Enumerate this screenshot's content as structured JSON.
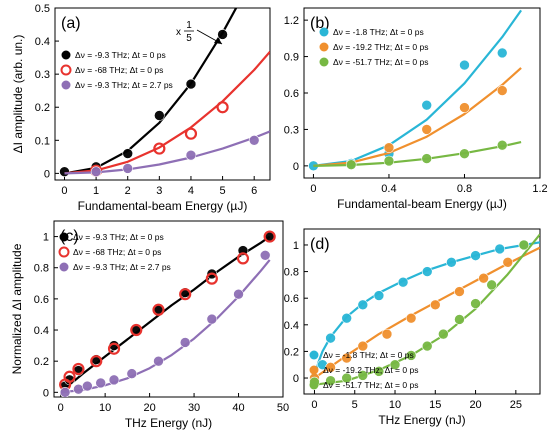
{
  "chart_data": [
    {
      "type": "scatter",
      "panel_label": "(a)",
      "xlabel": "Fundamental-beam Energy (µJ)",
      "ylabel": "ΔI amplitude (arb. un.)",
      "xlim": [
        -0.3,
        6.5
      ],
      "ylim": [
        -0.02,
        0.5
      ],
      "xticks": [
        "0",
        "1",
        "2",
        "3",
        "4",
        "5",
        "6"
      ],
      "yticks": [
        "0",
        "0.1",
        "0.2",
        "0.3",
        "0.4",
        "0.5"
      ],
      "legend_position": "upper-left",
      "annotation": {
        "prefix": "x",
        "numerator": "1",
        "denominator": "5"
      },
      "series": [
        {
          "name": "Δν = -9.3 THz; Δt = 0 ps",
          "color": "#000000",
          "marker": "filled",
          "x": [
            0,
            1,
            2,
            3,
            4,
            5
          ],
          "y": [
            0.005,
            0.02,
            0.06,
            0.175,
            0.27,
            0.42
          ],
          "fit_x": [
            0,
            1,
            2,
            3,
            4,
            5,
            5.6
          ],
          "fit_y": [
            0.0,
            0.017,
            0.068,
            0.153,
            0.272,
            0.425,
            0.53
          ]
        },
        {
          "name": "Δν = -68 THz; Δt = 0 ps",
          "color": "#e8332e",
          "marker": "open",
          "x": [
            1,
            3,
            4,
            5
          ],
          "y": [
            0.008,
            0.075,
            0.12,
            0.2
          ],
          "fit_x": [
            0,
            1,
            2,
            3,
            4,
            5,
            6,
            6.5
          ],
          "fit_y": [
            0.0,
            0.009,
            0.035,
            0.078,
            0.139,
            0.218,
            0.313,
            0.368
          ]
        },
        {
          "name": "Δν = -9.3 THz; Δt = 2.7 ps",
          "color": "#8e6fb5",
          "marker": "filled",
          "x": [
            1,
            2,
            4,
            6
          ],
          "y": [
            0.005,
            0.015,
            0.055,
            0.1
          ],
          "fit_x": [
            0,
            1,
            2,
            3,
            4,
            5,
            6,
            6.5
          ],
          "fit_y": [
            0.0,
            0.003,
            0.012,
            0.027,
            0.048,
            0.075,
            0.108,
            0.127
          ]
        }
      ]
    },
    {
      "type": "scatter",
      "panel_label": "(b)",
      "xlabel": "Fundamental-beam Energy (µJ)",
      "ylabel": "",
      "xlim": [
        -0.05,
        1.2
      ],
      "ylim": [
        -0.1,
        1.3
      ],
      "xticks": [
        "0",
        "0.4",
        "0.8",
        "1.2"
      ],
      "yticks": [
        "0",
        "0.3",
        "0.6",
        "0.9",
        "1.2"
      ],
      "legend_position": "upper-left",
      "series": [
        {
          "name": "Δν = -1.8 THz; Δt = 0 ps",
          "color": "#29b6d6",
          "marker": "filled",
          "x": [
            0,
            0.2,
            0.4,
            0.6,
            0.8,
            1.0
          ],
          "y": [
            0.0,
            0.02,
            0.1,
            0.5,
            0.83,
            0.93
          ],
          "fit_x": [
            0,
            0.2,
            0.4,
            0.6,
            0.8,
            1.0,
            1.1
          ],
          "fit_y": [
            0.0,
            0.04,
            0.17,
            0.38,
            0.68,
            1.06,
            1.28
          ]
        },
        {
          "name": "Δν = -19.2 THz; Δt = 0 ps",
          "color": "#f0902e",
          "marker": "filled",
          "x": [
            0.4,
            0.6,
            0.8,
            1.0
          ],
          "y": [
            0.15,
            0.3,
            0.48,
            0.62
          ],
          "fit_x": [
            0,
            0.2,
            0.4,
            0.6,
            0.8,
            1.0,
            1.1
          ],
          "fit_y": [
            0.0,
            0.027,
            0.107,
            0.24,
            0.427,
            0.667,
            0.807
          ]
        },
        {
          "name": "Δν = -51.7 THz; Δt = 0 ps",
          "color": "#77b843",
          "marker": "filled",
          "x": [
            0.2,
            0.4,
            0.6,
            0.8,
            1.0
          ],
          "y": [
            0.01,
            0.04,
            0.06,
            0.1,
            0.17
          ],
          "fit_x": [
            0,
            0.2,
            0.4,
            0.6,
            0.8,
            1.0,
            1.1
          ],
          "fit_y": [
            0.0,
            0.007,
            0.026,
            0.058,
            0.104,
            0.162,
            0.196
          ]
        }
      ]
    },
    {
      "type": "scatter",
      "panel_label": "(c)",
      "xlabel": "THz Energy (nJ)",
      "ylabel": "Normalized ΔI amplitude",
      "xlim": [
        -1.5,
        50
      ],
      "ylim": [
        -0.03,
        1.1
      ],
      "xticks": [
        "0",
        "10",
        "20",
        "30",
        "40",
        "50"
      ],
      "yticks": [
        "0",
        "0.2",
        "0.4",
        "0.6",
        "0.8",
        "1"
      ],
      "legend_position": "upper-left",
      "series": [
        {
          "name": "Δν = -9.3 THz; Δt = 0 ps",
          "color": "#000000",
          "marker": "filled",
          "x": [
            1,
            2,
            4,
            8,
            12,
            17,
            22,
            28,
            34,
            41,
            47
          ],
          "y": [
            0.04,
            0.08,
            0.14,
            0.21,
            0.3,
            0.4,
            0.53,
            0.64,
            0.76,
            0.91,
            1.0
          ],
          "fit_x": [
            0,
            5,
            10,
            15,
            20,
            25,
            30,
            35,
            40,
            45,
            47
          ],
          "fit_y": [
            0.0,
            0.12,
            0.23,
            0.34,
            0.45,
            0.56,
            0.66,
            0.77,
            0.87,
            0.96,
            1.0
          ]
        },
        {
          "name": "Δν = -68 THz; Δt = 0 ps",
          "color": "#e8332e",
          "marker": "open",
          "x": [
            1,
            2,
            4,
            8,
            12,
            17,
            22,
            28,
            34,
            41,
            47
          ],
          "y": [
            0.05,
            0.1,
            0.15,
            0.2,
            0.28,
            0.4,
            0.53,
            0.63,
            0.73,
            0.86,
            1.0
          ],
          "fit_x": [],
          "fit_y": []
        },
        {
          "name": "Δν = -9.3 THz; Δt = 2.7 ps",
          "color": "#8e6fb5",
          "marker": "filled",
          "x": [
            1,
            4,
            6,
            9,
            12,
            16,
            22,
            28,
            34,
            40,
            46
          ],
          "y": [
            0.0,
            0.02,
            0.04,
            0.06,
            0.08,
            0.12,
            0.2,
            0.32,
            0.47,
            0.63,
            0.88
          ],
          "fit_x": [
            0,
            5,
            10,
            15,
            20,
            25,
            30,
            35,
            40,
            45,
            47
          ],
          "fit_y": [
            0.0,
            0.015,
            0.045,
            0.09,
            0.155,
            0.24,
            0.345,
            0.47,
            0.615,
            0.78,
            0.85
          ]
        }
      ]
    },
    {
      "type": "scatter",
      "panel_label": "(d)",
      "xlabel": "THz Energy (nJ)",
      "ylabel": "",
      "xlim": [
        -1.3,
        28
      ],
      "ylim": [
        -0.12,
        1.12
      ],
      "xticks": [
        "0",
        "5",
        "10",
        "15",
        "20",
        "25"
      ],
      "yticks": [
        "0",
        "0.2",
        "0.4",
        "0.6",
        "0.8",
        "1"
      ],
      "legend_position": "lower-right",
      "series": [
        {
          "name": "Δν = -1.8 THz; Δt = 0 ps",
          "color": "#29b6d6",
          "marker": "filled",
          "x": [
            0,
            1,
            2,
            4,
            6,
            8,
            11,
            14,
            17,
            20,
            23,
            26
          ],
          "y": [
            0.0,
            0.1,
            0.3,
            0.45,
            0.55,
            0.62,
            0.72,
            0.8,
            0.87,
            0.92,
            0.97,
            1.0
          ],
          "fit_x": [
            0,
            0.5,
            1,
            2,
            4,
            6,
            8,
            11,
            14,
            17,
            20,
            23,
            26,
            28
          ],
          "fit_y": [
            0.0,
            0.12,
            0.2,
            0.31,
            0.46,
            0.56,
            0.64,
            0.73,
            0.81,
            0.87,
            0.92,
            0.97,
            1.0,
            1.02
          ]
        },
        {
          "name": "Δν = -19.2 THz; Δt = 0 ps",
          "color": "#f0902e",
          "marker": "filled",
          "x": [
            0,
            2,
            4,
            6,
            9,
            12,
            15,
            18,
            21,
            24
          ],
          "y": [
            0.0,
            0.08,
            0.15,
            0.24,
            0.33,
            0.45,
            0.55,
            0.65,
            0.75,
            0.87
          ],
          "fit_x": [
            0,
            4,
            8,
            12,
            16,
            20,
            24,
            28
          ],
          "fit_y": [
            0.0,
            0.17,
            0.33,
            0.47,
            0.6,
            0.73,
            0.86,
            0.98
          ]
        },
        {
          "name": "Δν = -51.7 THz; Δt = 0 ps",
          "color": "#77b843",
          "marker": "filled",
          "x": [
            0,
            2,
            4,
            6,
            8,
            10,
            12,
            14,
            16,
            18,
            20,
            22,
            26
          ],
          "y": [
            -0.03,
            -0.02,
            0.0,
            0.02,
            0.05,
            0.1,
            0.17,
            0.24,
            0.33,
            0.44,
            0.56,
            0.7,
            1.0
          ],
          "fit_x": [
            0,
            4,
            8,
            12,
            16,
            20,
            24,
            28
          ],
          "fit_y": [
            -0.05,
            -0.02,
            0.06,
            0.17,
            0.32,
            0.52,
            0.78,
            1.08
          ]
        }
      ]
    }
  ]
}
